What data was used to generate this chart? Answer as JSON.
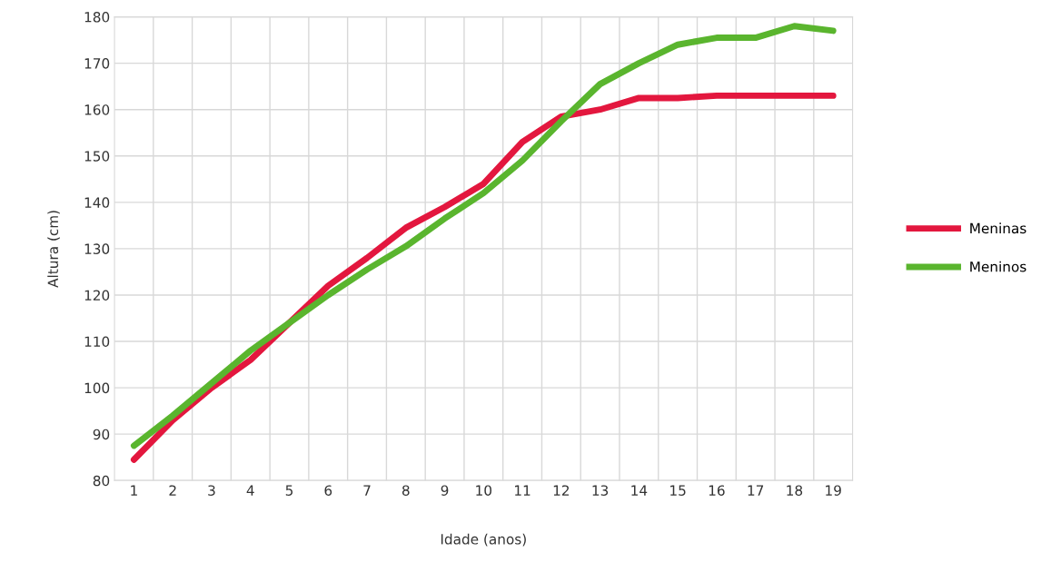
{
  "chart_data": {
    "type": "line",
    "xlabel": "Idade (anos)",
    "ylabel": "Altura (cm)",
    "categories": [
      "1",
      "2",
      "3",
      "4",
      "5",
      "6",
      "7",
      "8",
      "9",
      "10",
      "11",
      "12",
      "13",
      "14",
      "15",
      "16",
      "17",
      "18",
      "19"
    ],
    "series": [
      {
        "name": "Meninas",
        "color": "#e3173e",
        "values": [
          84.5,
          93,
          100,
          106,
          114,
          122,
          128,
          134.5,
          139,
          144,
          153,
          158.5,
          160,
          162.5,
          162.5,
          163,
          163,
          163,
          163
        ]
      },
      {
        "name": "Meninos",
        "color": "#5ab52e",
        "values": [
          87.5,
          94,
          101,
          108,
          114,
          120,
          125.5,
          130.5,
          136.5,
          142,
          149,
          157.5,
          165.5,
          170,
          174,
          175.5,
          175.5,
          178,
          177
        ]
      }
    ],
    "ylim": [
      80,
      180
    ],
    "yticks": [
      80,
      90,
      100,
      110,
      120,
      130,
      140,
      150,
      160,
      170,
      180
    ],
    "grid": true,
    "legend": "right",
    "marker": "none",
    "line_style": "solid"
  }
}
